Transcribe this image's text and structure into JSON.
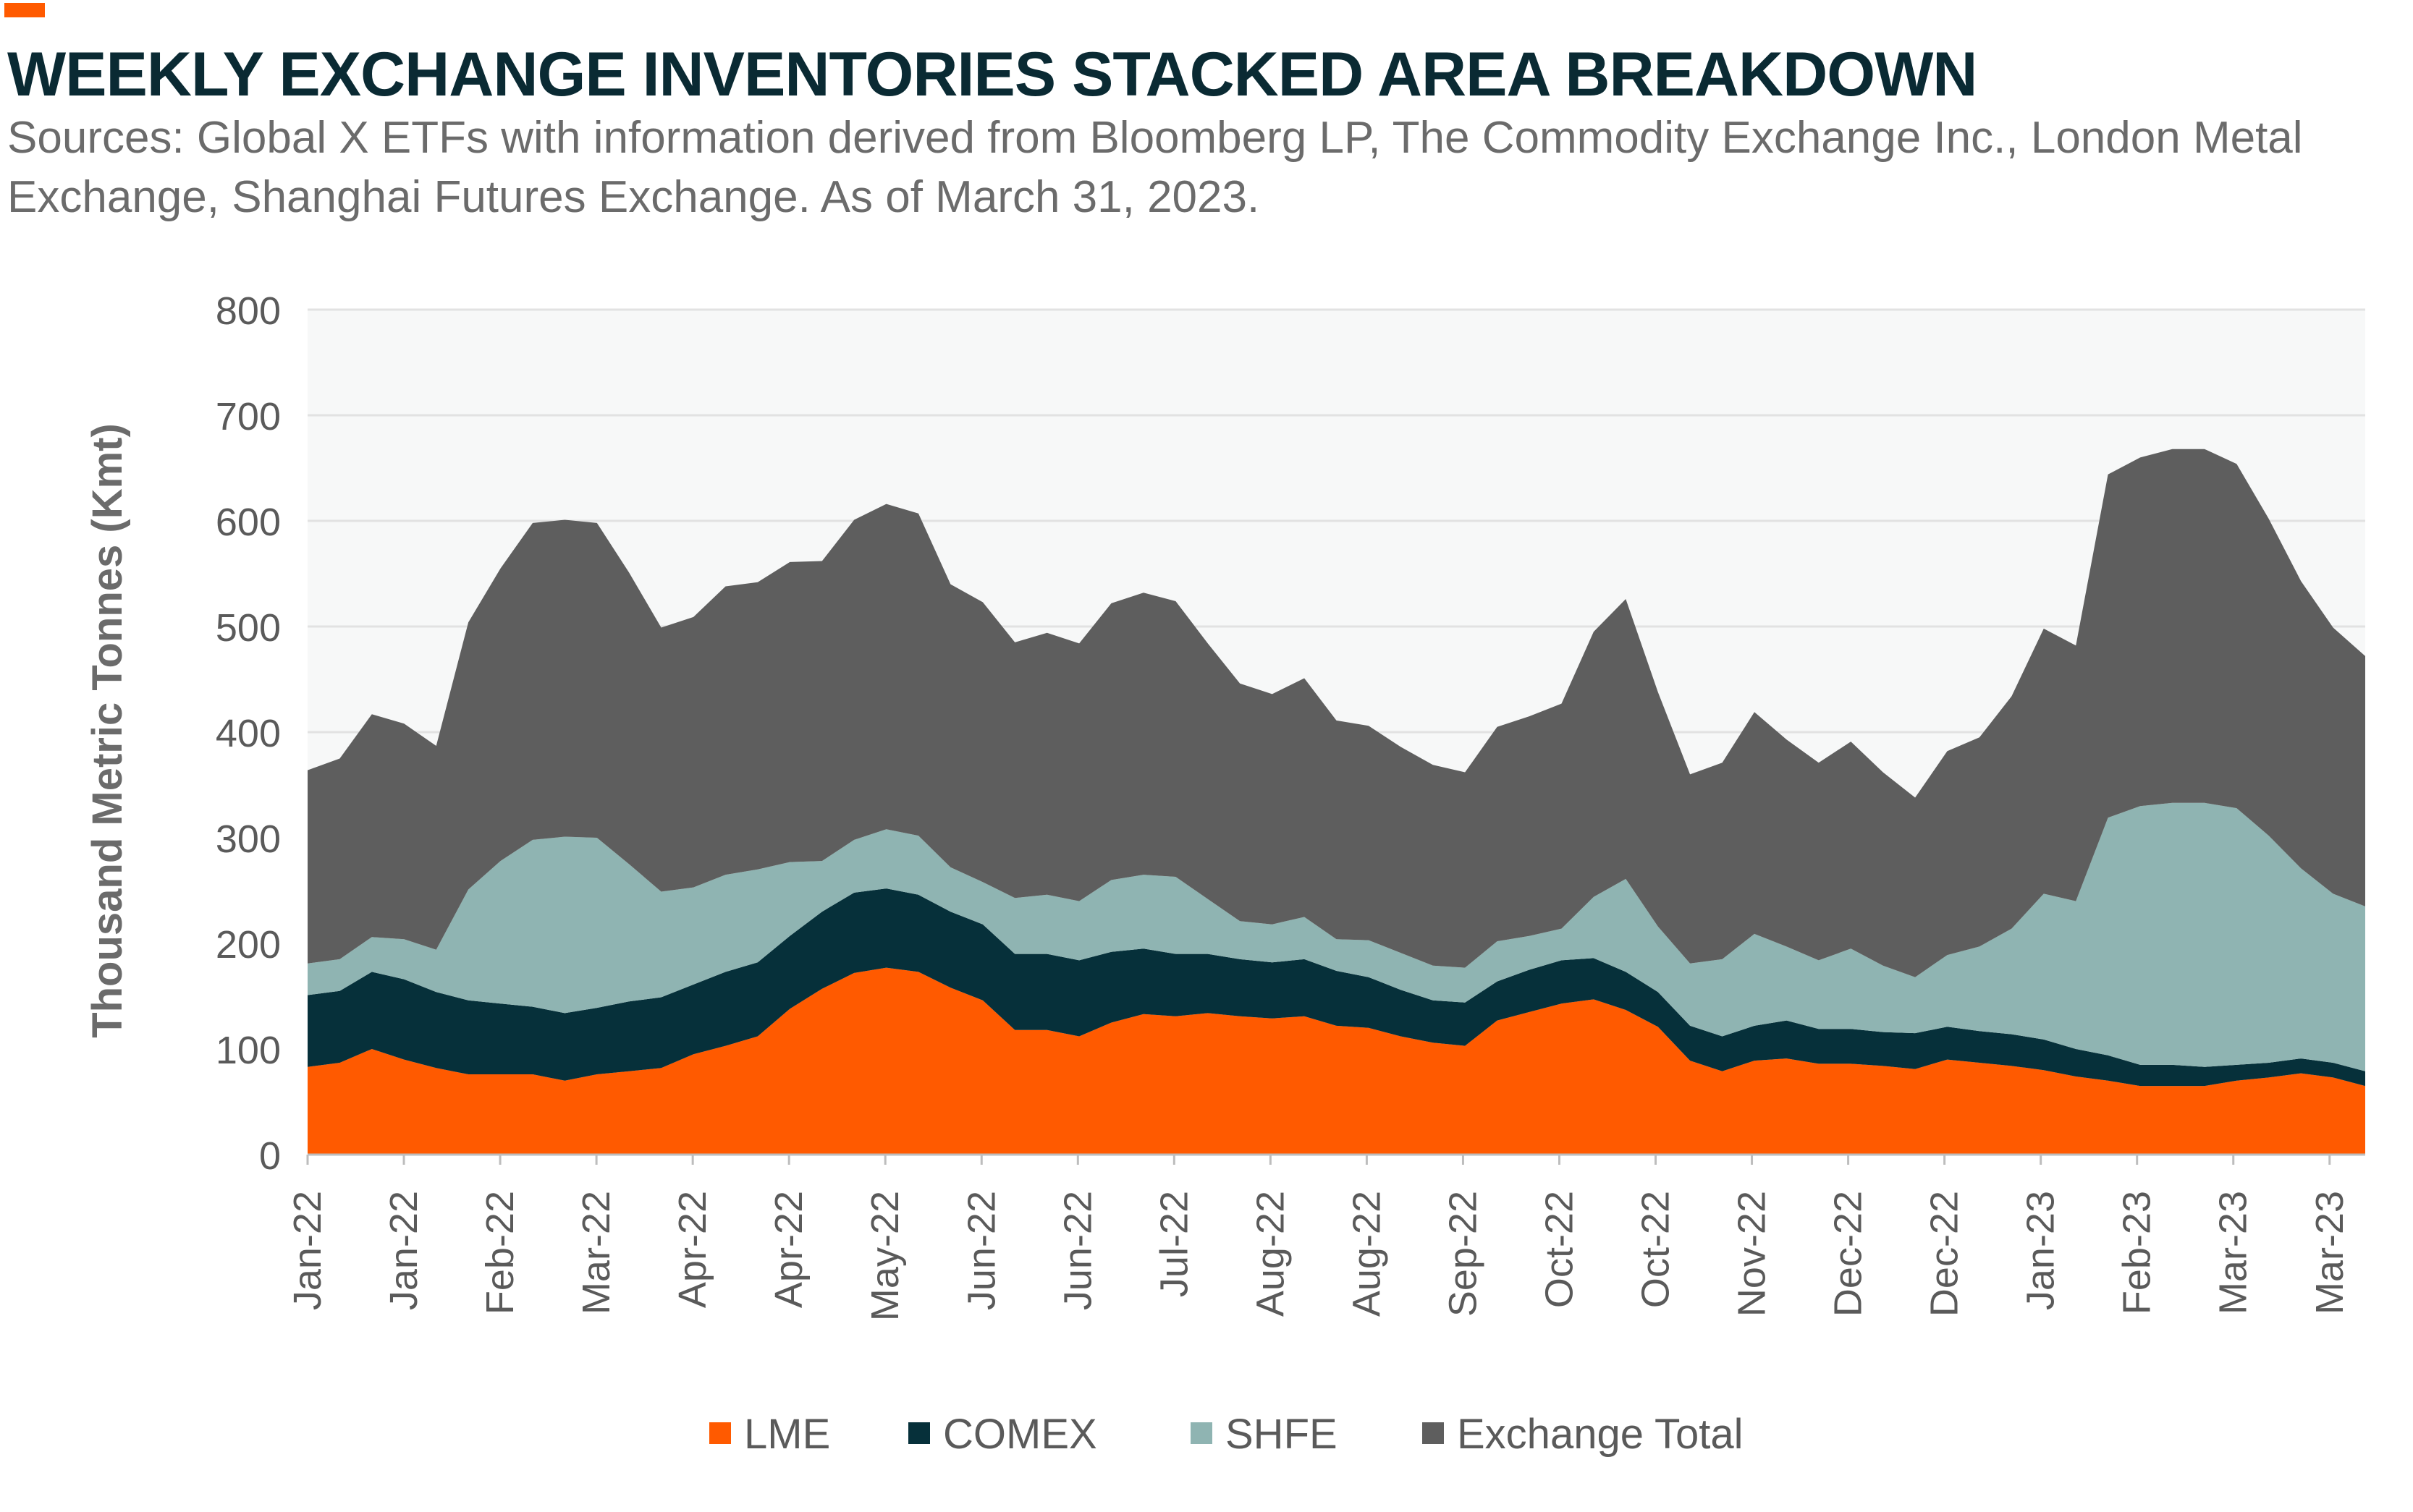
{
  "header": {
    "title": "WEEKLY EXCHANGE INVENTORIES STACKED AREA BREAKDOWN",
    "subtitle": "Sources: Global X ETFs with information derived from Bloomberg LP, The Commodity Exchange Inc., London Metal Exchange, Shanghai Futures Exchange. As of March 31, 2023."
  },
  "colors": {
    "accent": "#ff5a00",
    "LME": "#ff5a00",
    "COMEX": "#06303a",
    "SHFE": "#8fb4b2",
    "Exchange Total": "#5e5e5e",
    "plot_bg": "#f7f8f8",
    "grid": "#e2e2e2"
  },
  "chart_data": {
    "type": "area",
    "stacked": true,
    "ylabel": "Thousand Metric Tonnes (Kmt)",
    "xlabel": "",
    "ylim": [
      0,
      800
    ],
    "yticks": [
      0,
      100,
      200,
      300,
      400,
      500,
      600,
      700,
      800
    ],
    "grid": true,
    "legend_position": "bottom",
    "x_tick_labels": [
      "Jan-22",
      "Jan-22",
      "Feb-22",
      "Mar-22",
      "Apr-22",
      "Apr-22",
      "May-22",
      "Jun-22",
      "Jun-22",
      "Jul-22",
      "Aug-22",
      "Aug-22",
      "Sep-22",
      "Oct-22",
      "Oct-22",
      "Nov-22",
      "Dec-22",
      "Dec-22",
      "Jan-23",
      "Feb-23",
      "Mar-23",
      "Mar-23"
    ],
    "series": [
      {
        "name": "LME",
        "values": [
          83,
          87,
          100,
          90,
          82,
          76,
          76,
          76,
          70,
          76,
          79,
          82,
          95,
          103,
          112,
          138,
          157,
          172,
          177,
          173,
          158,
          146,
          118,
          118,
          112,
          125,
          133,
          131,
          134,
          131,
          129,
          131,
          122,
          120,
          112,
          106,
          103,
          127,
          135,
          143,
          147,
          137,
          121,
          89,
          79,
          89,
          91,
          86,
          86,
          84,
          81,
          90,
          87,
          84,
          80,
          74,
          70,
          65,
          65,
          65,
          70,
          73,
          77,
          73,
          65
        ]
      },
      {
        "name": "COMEX",
        "values": [
          68,
          68,
          73,
          76,
          72,
          70,
          67,
          64,
          64,
          63,
          66,
          67,
          66,
          70,
          70,
          69,
          73,
          76,
          75,
          73,
          72,
          72,
          72,
          72,
          72,
          67,
          62,
          59,
          56,
          54,
          53,
          54,
          52,
          48,
          44,
          40,
          41,
          37,
          40,
          41,
          39,
          36,
          33,
          33,
          33,
          33,
          36,
          33,
          33,
          32,
          34,
          31,
          30,
          30,
          29,
          26,
          24,
          20,
          20,
          18,
          15,
          14,
          14,
          14,
          14
        ]
      },
      {
        "name": "SHFE",
        "values": [
          30,
          30,
          33,
          38,
          40,
          105,
          135,
          158,
          167,
          161,
          130,
          100,
          92,
          92,
          88,
          70,
          48,
          50,
          56,
          56,
          42,
          40,
          53,
          56,
          56,
          68,
          70,
          73,
          52,
          36,
          36,
          40,
          30,
          35,
          35,
          33,
          33,
          38,
          32,
          30,
          58,
          88,
          62,
          59,
          73,
          87,
          70,
          65,
          76,
          63,
          53,
          68,
          80,
          100,
          138,
          140,
          225,
          245,
          248,
          250,
          243,
          215,
          180,
          160,
          156
        ]
      },
      {
        "name": "Exchange Total",
        "values": [
          183,
          190,
          211,
          204,
          193,
          253,
          277,
          300,
          300,
          298,
          276,
          250,
          256,
          273,
          272,
          284,
          284,
          303,
          308,
          305,
          268,
          265,
          242,
          248,
          244,
          262,
          267,
          261,
          242,
          225,
          218,
          226,
          207,
          203,
          195,
          190,
          185,
          203,
          208,
          213,
          251,
          265,
          222,
          179,
          186,
          210,
          196,
          187,
          196,
          183,
          170,
          193,
          198,
          220,
          251,
          242,
          325,
          330,
          335,
          335,
          326,
          300,
          272,
          252,
          237
        ]
      }
    ]
  }
}
